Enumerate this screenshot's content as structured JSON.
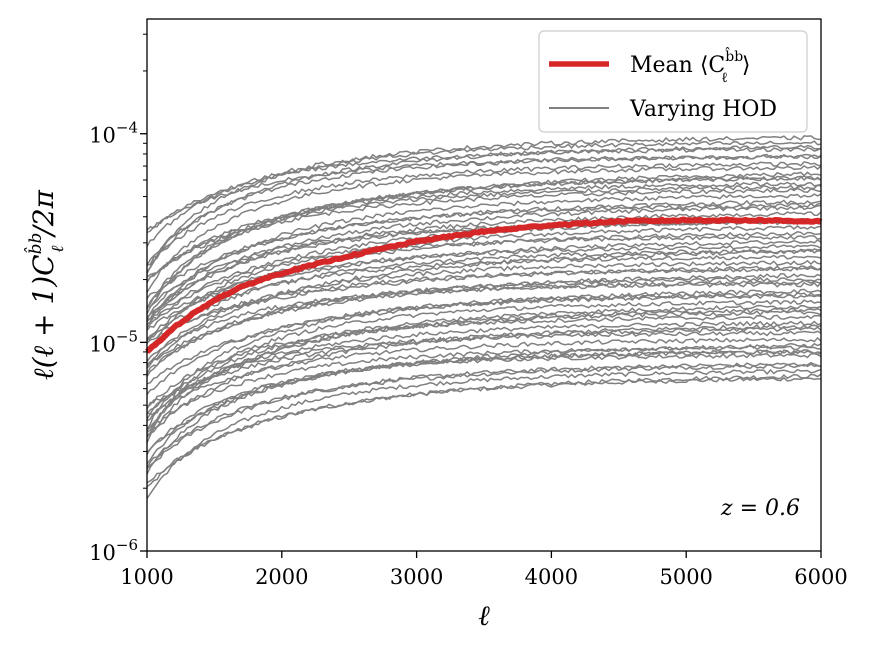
{
  "chart_data": {
    "type": "line",
    "title": "",
    "xlabel": "ℓ",
    "ylabel_parts": {
      "pre": "ℓ(ℓ + 1)",
      "c": "C",
      "sup": "b̂b",
      "sub": "ℓ",
      "post": "/2π"
    },
    "x_range": [
      1000,
      6000
    ],
    "y_range_log10": [
      -6,
      -3.45
    ],
    "y_scale": "log",
    "x_ticks": [
      {
        "value": 1000,
        "label": "1000"
      },
      {
        "value": 2000,
        "label": "2000"
      },
      {
        "value": 3000,
        "label": "3000"
      },
      {
        "value": 4000,
        "label": "4000"
      },
      {
        "value": 5000,
        "label": "5000"
      },
      {
        "value": 6000,
        "label": "6000"
      }
    ],
    "y_ticks": [
      {
        "exp": -6,
        "base": "10",
        "power": "−6"
      },
      {
        "exp": -5,
        "base": "10",
        "power": "−5"
      },
      {
        "exp": -4,
        "base": "10",
        "power": "−4"
      }
    ],
    "mean_series": {
      "name": "Mean ⟨C_ℓ^{b̂b}⟩",
      "color": "#d62728",
      "x": [
        1000,
        1250,
        1500,
        1750,
        2000,
        2500,
        3000,
        3500,
        4000,
        4500,
        5000,
        5500,
        6000
      ],
      "y": [
        9e-06,
        1.25e-05,
        1.6e-05,
        1.9e-05,
        2.15e-05,
        2.6e-05,
        3.05e-05,
        3.4e-05,
        3.65e-05,
        3.8e-05,
        3.85e-05,
        3.85e-05,
        3.8e-05
      ]
    },
    "hod_series": {
      "name": "Varying HOD",
      "color": "#808080",
      "count": 60,
      "amplitude_at_6000_min": 6.8e-06,
      "amplitude_at_6000_max": 9.6e-05,
      "ratio_1000_to_6000_range": [
        0.22,
        0.45
      ]
    },
    "legend": {
      "position": "top-right",
      "entries": [
        {
          "label_main": "Mean ⟨C",
          "label_sup": "b̂b",
          "label_sub": "ℓ",
          "label_end": "⟩",
          "color": "#d62728"
        },
        {
          "label": "Varying HOD",
          "color": "#808080"
        }
      ]
    },
    "annotation": "z = 0.6"
  }
}
